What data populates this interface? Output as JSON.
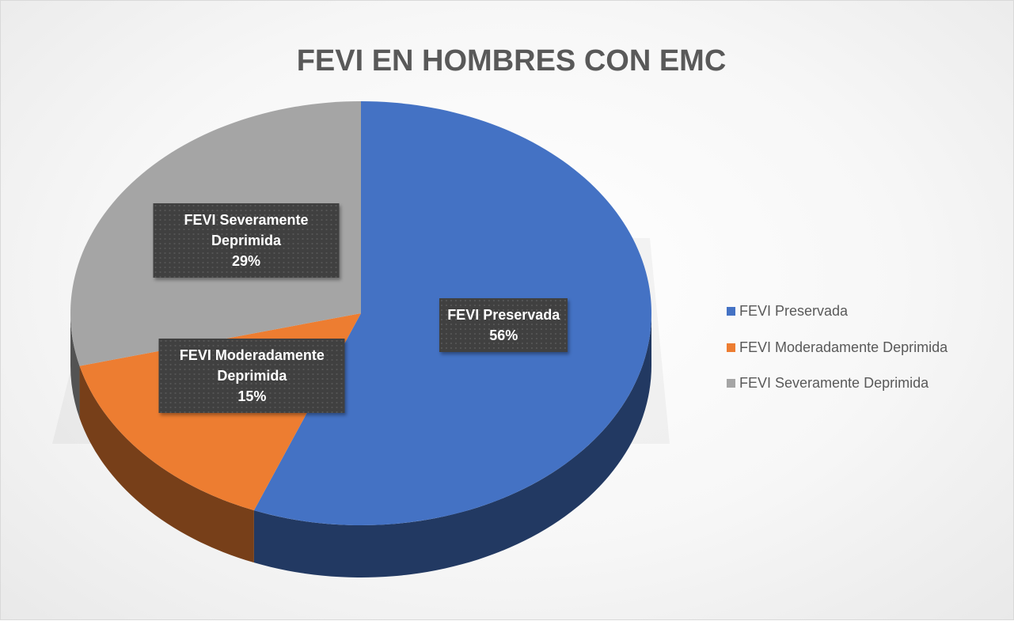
{
  "chart_data": {
    "type": "pie",
    "title": "FEVI EN HOMBRES CON EMC",
    "categories": [
      "FEVI Preservada",
      "FEVI Moderadamente Deprimida",
      "FEVI Severamente Deprimida"
    ],
    "values": [
      56,
      15,
      29
    ],
    "value_labels": [
      "56%",
      "15%",
      "29%"
    ],
    "colors": [
      "#4472c4",
      "#ed7d31",
      "#a5a5a5"
    ],
    "legend": "right"
  }
}
